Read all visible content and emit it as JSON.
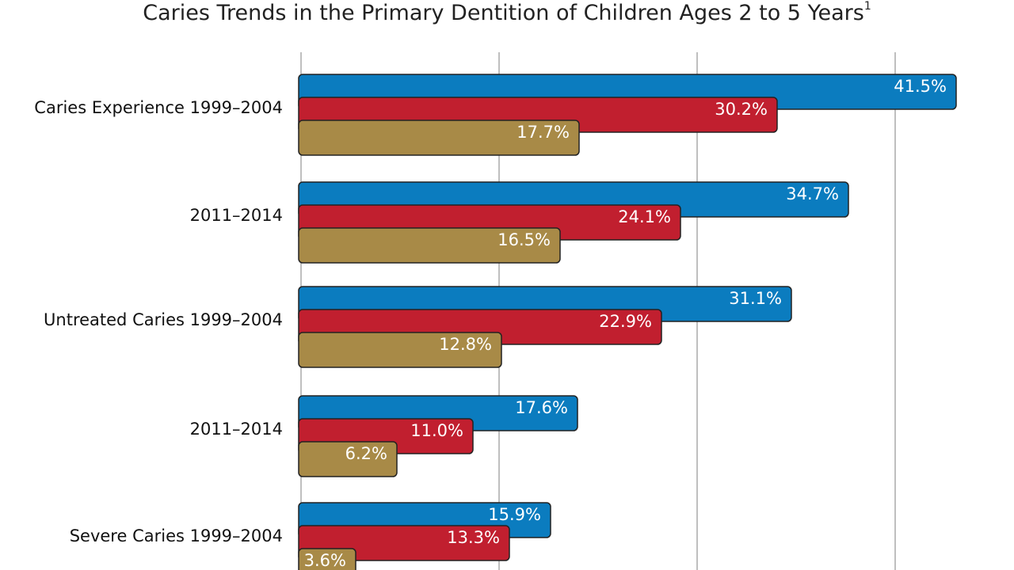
{
  "chart_data": {
    "type": "bar",
    "orientation": "horizontal",
    "title": "Caries Trends in the Primary Dentition of Children Ages 2 to 5 Years",
    "title_note": "1",
    "categories": [
      "Caries Experience 1999–2004",
      "2011–2014",
      "Untreated Caries 1999–2004",
      "2011–2014",
      "Severe Caries 1999–2004"
    ],
    "series": [
      {
        "color": "#0b7cbf",
        "values": [
          41.5,
          34.7,
          31.1,
          17.6,
          15.9
        ],
        "value_labels": [
          "41.5%",
          "34.7%",
          "31.1%",
          "17.6%",
          "15.9%"
        ]
      },
      {
        "color": "#c11f2f",
        "values": [
          30.2,
          24.1,
          22.9,
          11.0,
          13.3
        ],
        "value_labels": [
          "30.2%",
          "24.1%",
          "22.9%",
          "11.0%",
          "13.3%"
        ]
      },
      {
        "color": "#a88a47",
        "values": [
          17.7,
          16.5,
          12.8,
          6.2,
          3.6
        ],
        "value_labels": [
          "17.7%",
          "16.5%",
          "12.8%",
          "6.2%",
          "3.6%"
        ]
      }
    ],
    "xlim": [
      0,
      45
    ],
    "xticks": [
      0,
      12.5,
      25,
      37.5
    ],
    "grid": true
  }
}
